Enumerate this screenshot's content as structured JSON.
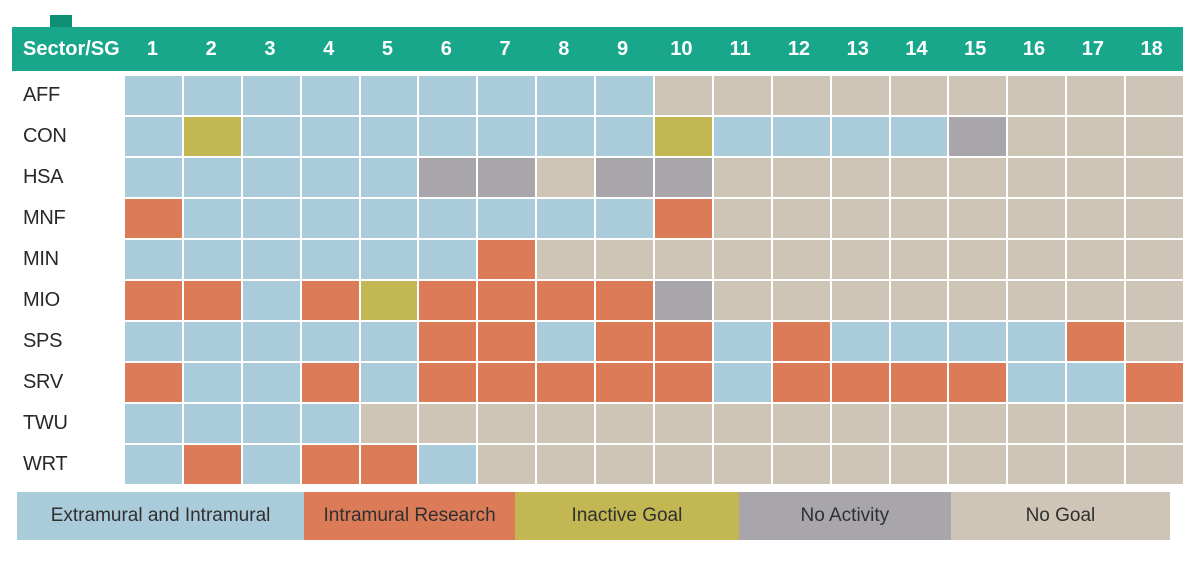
{
  "header": {
    "corner_label": "Sector/SG"
  },
  "colors": {
    "header_bg": "#18a78b",
    "header_notch": "#0e8e73",
    "header_text": "#ffffff",
    "row_label_text": "#2b2728",
    "legend_text": "#303030",
    "background": "#ffffff",
    "cell_gap": "#ffffff"
  },
  "legend": {
    "items": [
      {
        "label": "Extramural and Intramural",
        "code": "E",
        "color": "#a9cbda"
      },
      {
        "label": "Intramural Research",
        "code": "I",
        "color": "#db7b58"
      },
      {
        "label": "Inactive Goal",
        "code": "G",
        "color": "#c2b752"
      },
      {
        "label": "No Activity",
        "code": "N",
        "color": "#a8a6ab"
      },
      {
        "label": "No Goal",
        "code": "X",
        "color": "#cfc5b7"
      }
    ]
  },
  "chart_data": {
    "type": "heatmap",
    "title": "Sector/SG",
    "x_labels": [
      "1",
      "2",
      "3",
      "4",
      "5",
      "6",
      "7",
      "8",
      "9",
      "10",
      "11",
      "12",
      "13",
      "14",
      "15",
      "16",
      "17",
      "18"
    ],
    "y_labels": [
      "AFF",
      "CON",
      "HSA",
      "MNF",
      "MIN",
      "MIO",
      "SPS",
      "SRV",
      "TWU",
      "WRT"
    ],
    "categories": {
      "E": "Extramural and Intramural",
      "I": "Intramural Research",
      "G": "Inactive Goal",
      "N": "No Activity",
      "X": "No Goal"
    },
    "category_colors": {
      "E": "#a9cbda",
      "I": "#db7b58",
      "G": "#c2b752",
      "N": "#a8a6ab",
      "X": "#cfc5b7"
    },
    "rows": [
      {
        "sector": "AFF",
        "cells": [
          "E",
          "E",
          "E",
          "E",
          "E",
          "E",
          "E",
          "E",
          "E",
          "X",
          "X",
          "X",
          "X",
          "X",
          "X",
          "X",
          "X",
          "X"
        ]
      },
      {
        "sector": "CON",
        "cells": [
          "E",
          "G",
          "E",
          "E",
          "E",
          "E",
          "E",
          "E",
          "E",
          "G",
          "E",
          "E",
          "E",
          "E",
          "N",
          "X",
          "X",
          "X"
        ]
      },
      {
        "sector": "HSA",
        "cells": [
          "E",
          "E",
          "E",
          "E",
          "E",
          "N",
          "N",
          "X",
          "N",
          "N",
          "X",
          "X",
          "X",
          "X",
          "X",
          "X",
          "X",
          "X"
        ]
      },
      {
        "sector": "MNF",
        "cells": [
          "I",
          "E",
          "E",
          "E",
          "E",
          "E",
          "E",
          "E",
          "E",
          "I",
          "X",
          "X",
          "X",
          "X",
          "X",
          "X",
          "X",
          "X"
        ]
      },
      {
        "sector": "MIN",
        "cells": [
          "E",
          "E",
          "E",
          "E",
          "E",
          "E",
          "I",
          "X",
          "X",
          "X",
          "X",
          "X",
          "X",
          "X",
          "X",
          "X",
          "X",
          "X"
        ]
      },
      {
        "sector": "MIO",
        "cells": [
          "I",
          "I",
          "E",
          "I",
          "G",
          "I",
          "I",
          "I",
          "I",
          "N",
          "X",
          "X",
          "X",
          "X",
          "X",
          "X",
          "X",
          "X"
        ]
      },
      {
        "sector": "SPS",
        "cells": [
          "E",
          "E",
          "E",
          "E",
          "E",
          "I",
          "I",
          "E",
          "I",
          "I",
          "E",
          "I",
          "E",
          "E",
          "E",
          "E",
          "I",
          "X"
        ]
      },
      {
        "sector": "SRV",
        "cells": [
          "I",
          "E",
          "E",
          "I",
          "E",
          "I",
          "I",
          "I",
          "I",
          "I",
          "E",
          "I",
          "I",
          "I",
          "I",
          "E",
          "E",
          "I"
        ]
      },
      {
        "sector": "TWU",
        "cells": [
          "E",
          "E",
          "E",
          "E",
          "X",
          "X",
          "X",
          "X",
          "X",
          "X",
          "X",
          "X",
          "X",
          "X",
          "X",
          "X",
          "X",
          "X"
        ]
      },
      {
        "sector": "WRT",
        "cells": [
          "E",
          "I",
          "E",
          "I",
          "I",
          "E",
          "X",
          "X",
          "X",
          "X",
          "X",
          "X",
          "X",
          "X",
          "X",
          "X",
          "X",
          "X"
        ]
      }
    ]
  }
}
